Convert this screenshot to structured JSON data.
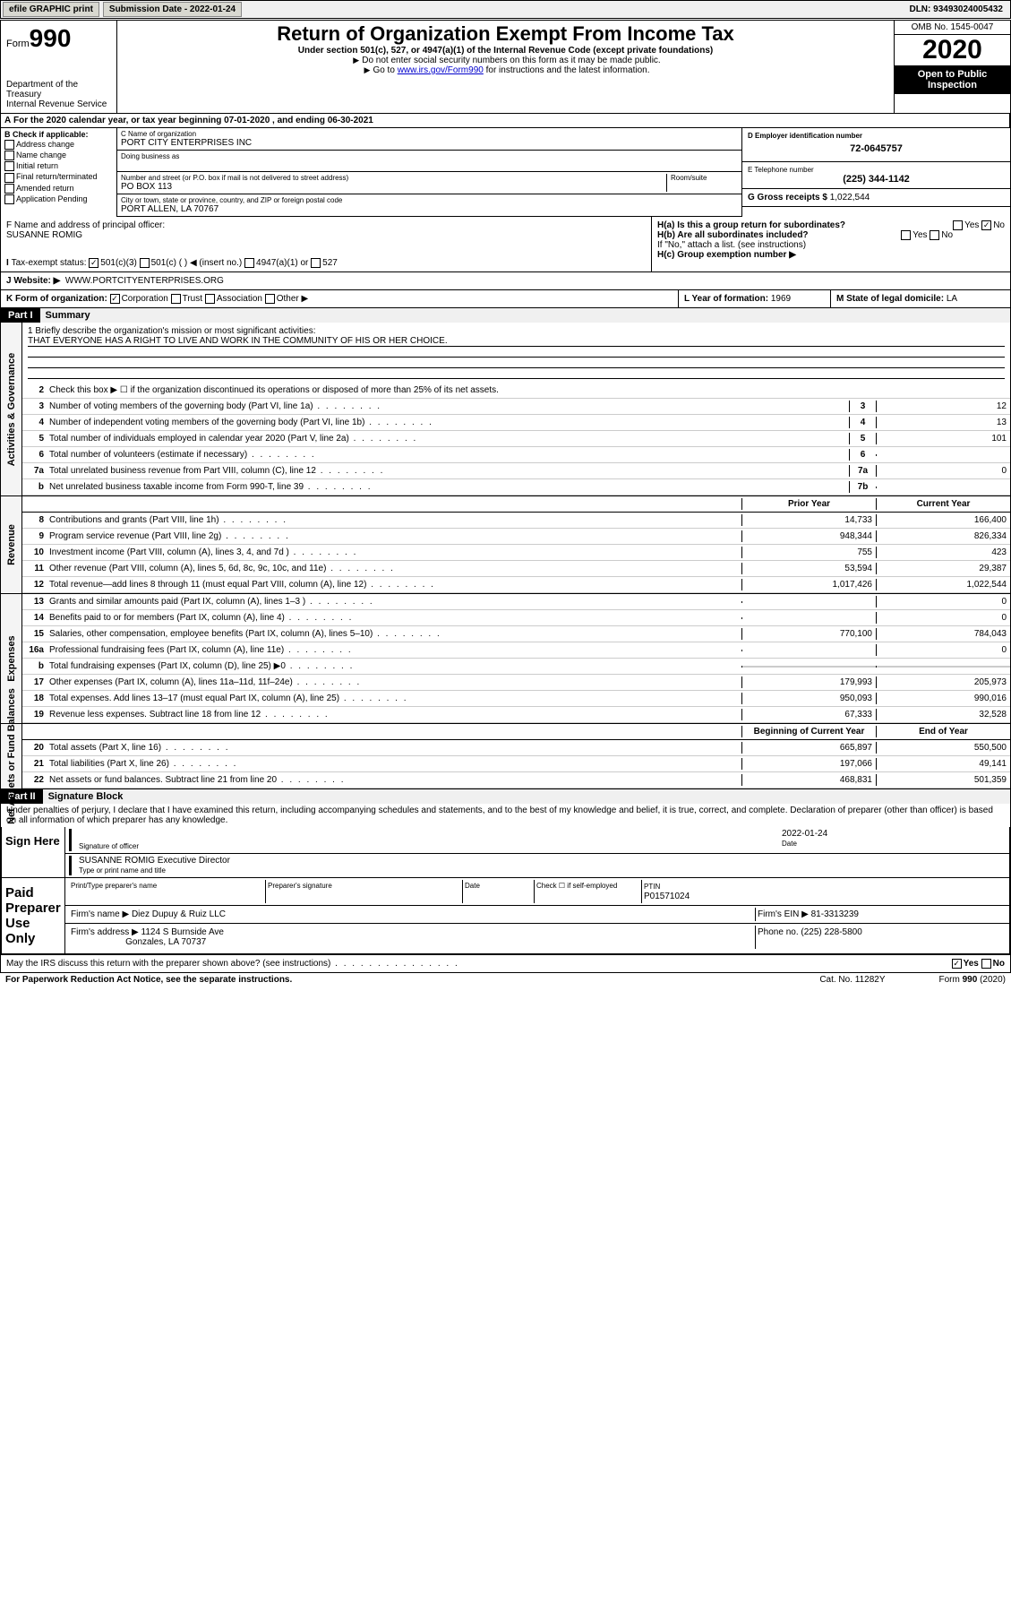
{
  "topbar": {
    "efile": "efile GRAPHIC print",
    "sub_label": "Submission Date - 2022-01-24",
    "dln": "DLN: 93493024005432"
  },
  "header": {
    "form_word": "Form",
    "form_num": "990",
    "dept": "Department of the Treasury",
    "irs": "Internal Revenue Service",
    "title": "Return of Organization Exempt From Income Tax",
    "subtitle": "Under section 501(c), 527, or 4947(a)(1) of the Internal Revenue Code (except private foundations)",
    "note1": "Do not enter social security numbers on this form as it may be made public.",
    "note2_a": "Go to ",
    "note2_link": "www.irs.gov/Form990",
    "note2_b": " for instructions and the latest information.",
    "omb": "OMB No. 1545-0047",
    "year": "2020",
    "open": "Open to Public Inspection"
  },
  "period": "For the 2020 calendar year, or tax year beginning 07-01-2020   , and ending 06-30-2021",
  "boxB": {
    "title": "B Check if applicable:",
    "items": [
      "Address change",
      "Name change",
      "Initial return",
      "Final return/terminated",
      "Amended return",
      "Application Pending"
    ]
  },
  "boxC": {
    "name_label": "C Name of organization",
    "name": "PORT CITY ENTERPRISES INC",
    "dba_label": "Doing business as",
    "addr_label": "Number and street (or P.O. box if mail is not delivered to street address)",
    "room_label": "Room/suite",
    "addr": "PO BOX 113",
    "city_label": "City or town, state or province, country, and ZIP or foreign postal code",
    "city": "PORT ALLEN, LA  70767"
  },
  "boxD": {
    "label": "D Employer identification number",
    "value": "72-0645757"
  },
  "boxE": {
    "label": "E Telephone number",
    "value": "(225) 344-1142"
  },
  "boxG": {
    "label": "G Gross receipts $",
    "value": "1,022,544"
  },
  "boxF": {
    "label": "F Name and address of principal officer:",
    "name": "SUSANNE ROMIG"
  },
  "boxH": {
    "a": "H(a)  Is this a group return for subordinates?",
    "b": "H(b)  Are all subordinates included?",
    "note": "If \"No,\" attach a list. (see instructions)",
    "c": "H(c)  Group exemption number ▶",
    "yes": "Yes",
    "no": "No"
  },
  "boxI": {
    "label": "Tax-exempt status:",
    "opts": [
      "501(c)(3)",
      "501(c) (  ) ◀ (insert no.)",
      "4947(a)(1) or",
      "527"
    ]
  },
  "boxJ": {
    "label": "Website: ▶",
    "value": "WWW.PORTCITYENTERPRISES.ORG"
  },
  "boxK": {
    "label": "K Form of organization:",
    "opts": [
      "Corporation",
      "Trust",
      "Association",
      "Other ▶"
    ]
  },
  "boxL": {
    "label": "L Year of formation:",
    "value": "1969"
  },
  "boxM": {
    "label": "M State of legal domicile:",
    "value": "LA"
  },
  "part1": {
    "hdr": "Part I",
    "title": "Summary",
    "l1_label": "1 Briefly describe the organization's mission or most significant activities:",
    "l1_text": "THAT EVERYONE HAS A RIGHT TO LIVE AND WORK IN THE COMMUNITY OF HIS OR HER CHOICE.",
    "sections": {
      "gov": "Activities & Governance",
      "rev": "Revenue",
      "exp": "Expenses",
      "net": "Net Assets or Fund Balances"
    },
    "l2": "Check this box ▶ ☐ if the organization discontinued its operations or disposed of more than 25% of its net assets.",
    "lines_gov": [
      {
        "n": "3",
        "t": "Number of voting members of the governing body (Part VI, line 1a)",
        "b": "3",
        "v": "12"
      },
      {
        "n": "4",
        "t": "Number of independent voting members of the governing body (Part VI, line 1b)",
        "b": "4",
        "v": "13"
      },
      {
        "n": "5",
        "t": "Total number of individuals employed in calendar year 2020 (Part V, line 2a)",
        "b": "5",
        "v": "101"
      },
      {
        "n": "6",
        "t": "Total number of volunteers (estimate if necessary)",
        "b": "6",
        "v": ""
      },
      {
        "n": "7a",
        "t": "Total unrelated business revenue from Part VIII, column (C), line 12",
        "b": "7a",
        "v": "0"
      },
      {
        "n": "b",
        "t": "Net unrelated business taxable income from Form 990-T, line 39",
        "b": "7b",
        "v": ""
      }
    ],
    "col_prior": "Prior Year",
    "col_curr": "Current Year",
    "col_beg": "Beginning of Current Year",
    "col_end": "End of Year",
    "lines_rev": [
      {
        "n": "8",
        "t": "Contributions and grants (Part VIII, line 1h)",
        "p": "14,733",
        "c": "166,400"
      },
      {
        "n": "9",
        "t": "Program service revenue (Part VIII, line 2g)",
        "p": "948,344",
        "c": "826,334"
      },
      {
        "n": "10",
        "t": "Investment income (Part VIII, column (A), lines 3, 4, and 7d )",
        "p": "755",
        "c": "423"
      },
      {
        "n": "11",
        "t": "Other revenue (Part VIII, column (A), lines 5, 6d, 8c, 9c, 10c, and 11e)",
        "p": "53,594",
        "c": "29,387"
      },
      {
        "n": "12",
        "t": "Total revenue—add lines 8 through 11 (must equal Part VIII, column (A), line 12)",
        "p": "1,017,426",
        "c": "1,022,544"
      }
    ],
    "lines_exp": [
      {
        "n": "13",
        "t": "Grants and similar amounts paid (Part IX, column (A), lines 1–3 )",
        "p": "",
        "c": "0"
      },
      {
        "n": "14",
        "t": "Benefits paid to or for members (Part IX, column (A), line 4)",
        "p": "",
        "c": "0"
      },
      {
        "n": "15",
        "t": "Salaries, other compensation, employee benefits (Part IX, column (A), lines 5–10)",
        "p": "770,100",
        "c": "784,043"
      },
      {
        "n": "16a",
        "t": "Professional fundraising fees (Part IX, column (A), line 11e)",
        "p": "",
        "c": "0"
      },
      {
        "n": "b",
        "t": "Total fundraising expenses (Part IX, column (D), line 25) ▶0",
        "p": "grey",
        "c": "grey"
      },
      {
        "n": "17",
        "t": "Other expenses (Part IX, column (A), lines 11a–11d, 11f–24e)",
        "p": "179,993",
        "c": "205,973"
      },
      {
        "n": "18",
        "t": "Total expenses. Add lines 13–17 (must equal Part IX, column (A), line 25)",
        "p": "950,093",
        "c": "990,016"
      },
      {
        "n": "19",
        "t": "Revenue less expenses. Subtract line 18 from line 12",
        "p": "67,333",
        "c": "32,528"
      }
    ],
    "lines_net": [
      {
        "n": "20",
        "t": "Total assets (Part X, line 16)",
        "p": "665,897",
        "c": "550,500"
      },
      {
        "n": "21",
        "t": "Total liabilities (Part X, line 26)",
        "p": "197,066",
        "c": "49,141"
      },
      {
        "n": "22",
        "t": "Net assets or fund balances. Subtract line 21 from line 20",
        "p": "468,831",
        "c": "501,359"
      }
    ]
  },
  "part2": {
    "hdr": "Part II",
    "title": "Signature Block",
    "decl": "Under penalties of perjury, I declare that I have examined this return, including accompanying schedules and statements, and to the best of my knowledge and belief, it is true, correct, and complete. Declaration of preparer (other than officer) is based on all information of which preparer has any knowledge.",
    "sign_here": "Sign Here",
    "sig_officer": "Signature of officer",
    "sig_date": "Date",
    "date_val": "2022-01-24",
    "officer_name": "SUSANNE ROMIG  Executive Director",
    "type_label": "Type or print name and title",
    "paid": "Paid Preparer Use Only",
    "prep_name": "Print/Type preparer's name",
    "prep_sig": "Preparer's signature",
    "prep_date": "Date",
    "check_self": "Check ☐ if self-employed",
    "ptin_label": "PTIN",
    "ptin": "P01571024",
    "firm_name_l": "Firm's name   ▶",
    "firm_name": "Diez Dupuy & Ruiz LLC",
    "firm_ein_l": "Firm's EIN ▶",
    "firm_ein": "81-3313239",
    "firm_addr_l": "Firm's address ▶",
    "firm_addr1": "1124 S Burnside Ave",
    "firm_addr2": "Gonzales, LA  70737",
    "phone_l": "Phone no.",
    "phone": "(225) 228-5800",
    "discuss": "May the IRS discuss this return with the preparer shown above? (see instructions)"
  },
  "footer": {
    "pra": "For Paperwork Reduction Act Notice, see the separate instructions.",
    "cat": "Cat. No. 11282Y",
    "form": "Form 990 (2020)"
  }
}
